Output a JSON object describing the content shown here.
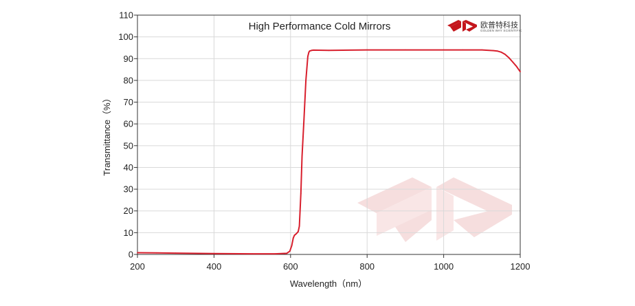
{
  "chart_data": {
    "type": "line",
    "title": "High Performance Cold Mirrors",
    "xlabel": "Wavelength（nm）",
    "ylabel": "Transmittance（%）",
    "xlim": [
      200,
      1200
    ],
    "ylim": [
      0,
      110
    ],
    "xticks": [
      200,
      400,
      600,
      800,
      1000,
      1200
    ],
    "yticks": [
      0,
      10,
      20,
      30,
      40,
      50,
      60,
      70,
      80,
      90,
      100,
      110
    ],
    "grid": true,
    "series": [
      {
        "color": "#d81e2c",
        "x": [
          200,
          250,
          300,
          400,
          500,
          560,
          590,
          598,
          603,
          607,
          610,
          615,
          620,
          623,
          627,
          630,
          635,
          640,
          645,
          648,
          650,
          655,
          660,
          700,
          800,
          900,
          1000,
          1050,
          1100,
          1130,
          1140,
          1150,
          1160,
          1170,
          1180,
          1190,
          1200
        ],
        "y": [
          0.8,
          0.7,
          0.6,
          0.4,
          0.3,
          0.3,
          0.5,
          1.5,
          4,
          7.5,
          8.8,
          9.5,
          10.5,
          13,
          28,
          45,
          62,
          80,
          91,
          93,
          93.5,
          93.8,
          93.9,
          93.8,
          94,
          94,
          94,
          94,
          94,
          93.7,
          93.5,
          93,
          92,
          90.5,
          88.5,
          86.5,
          84
        ]
      }
    ]
  },
  "branding": {
    "logo_cn": "欧普特科技",
    "logo_en": "GOLDEN WAY SCIENTIFIC"
  },
  "colors": {
    "line": "#d81e2c",
    "grid": "#d9d9d9",
    "axis": "#333333",
    "logo": "#c4161c",
    "watermark": "#f6dede"
  }
}
